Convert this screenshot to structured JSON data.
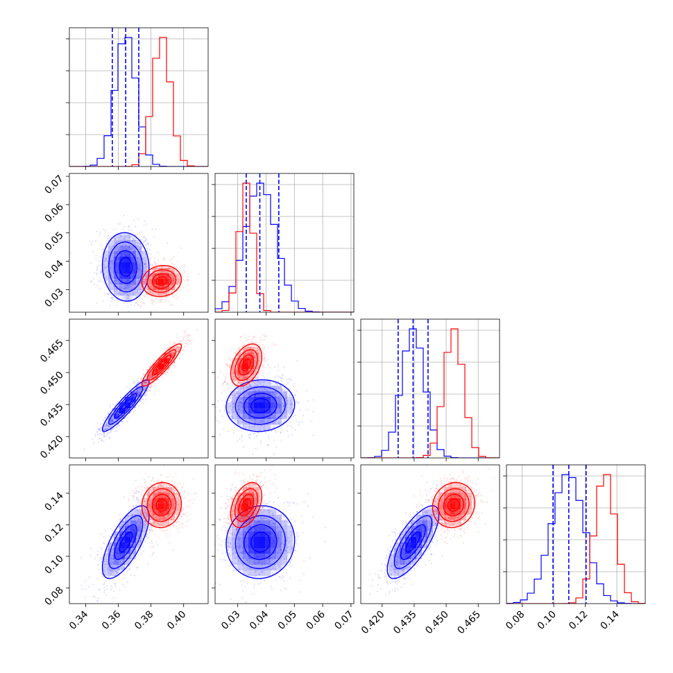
{
  "chart_data": {
    "type": "corner",
    "parameters": 4,
    "colors": {
      "blue": "#0000ff",
      "red": "#ff0000"
    },
    "axes": [
      {
        "range": [
          0.33,
          0.415
        ],
        "ticks": [
          0.34,
          0.36,
          0.38,
          0.4
        ],
        "tick_labels": [
          "0.34",
          "0.36",
          "0.38",
          "0.40"
        ]
      },
      {
        "range": [
          0.022,
          0.071
        ],
        "ticks": [
          0.03,
          0.04,
          0.05,
          0.06,
          0.07
        ],
        "tick_labels": [
          "0.03",
          "0.04",
          "0.05",
          "0.06",
          "0.07"
        ]
      },
      {
        "range": [
          0.41,
          0.475
        ],
        "ticks": [
          0.42,
          0.435,
          0.45,
          0.465
        ],
        "tick_labels": [
          "0.420",
          "0.435",
          "0.450",
          "0.465"
        ]
      },
      {
        "range": [
          0.07,
          0.158
        ],
        "ticks": [
          0.08,
          0.1,
          0.12,
          0.14
        ],
        "tick_labels": [
          "0.08",
          "0.10",
          "0.12",
          "0.14"
        ]
      }
    ],
    "posteriors": {
      "blue": {
        "mean": [
          0.3645,
          0.038,
          0.4345,
          0.109
        ],
        "sigma": [
          0.0065,
          0.0055,
          0.0055,
          0.0105
        ]
      },
      "red": {
        "mean": [
          0.3865,
          0.033,
          0.4535,
          0.1325
        ],
        "sigma": [
          0.0055,
          0.0025,
          0.0045,
          0.0065
        ]
      }
    },
    "quantile_lines": {
      "blue": [
        [
          0.3563,
          0.3645,
          0.3725
        ],
        [
          0.033,
          0.0378,
          0.0445
        ],
        [
          0.4275,
          0.4345,
          0.4415
        ],
        [
          0.0995,
          0.1095,
          0.1205
        ]
      ]
    },
    "correlations": {
      "blue": {
        "1-0": -0.05,
        "2-0": 0.92,
        "2-1": 0.05,
        "3-0": 0.7,
        "3-1": 0.05,
        "3-2": 0.75
      },
      "red": {
        "1-0": 0.1,
        "2-0": 0.9,
        "2-1": 0.4,
        "3-0": 0.05,
        "3-1": 0.4,
        "3-2": 0.1
      }
    },
    "grid": true,
    "legend": "none"
  }
}
